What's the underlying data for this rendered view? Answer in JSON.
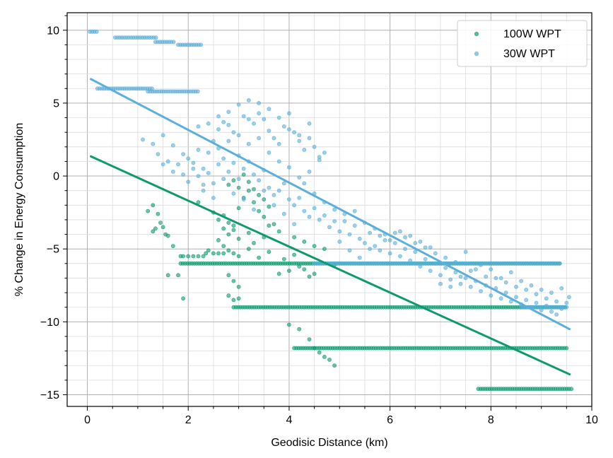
{
  "chart_data": {
    "type": "scatter",
    "xlabel": "Geodisic Distance (km)",
    "ylabel": "% Change in Energy Consumption",
    "xlim": [
      -0.4,
      10
    ],
    "ylim": [
      -15.8,
      11.2
    ],
    "xticks": [
      "0",
      "2",
      "4",
      "6",
      "8",
      "10"
    ],
    "yticks": [
      "10",
      "5",
      "0",
      "−5",
      "−10",
      "−15"
    ],
    "grid": "major and minor",
    "legend_position": "top-right",
    "series": [
      {
        "name": "100W WPT",
        "color": "#0e9a6e",
        "points": [
          [
            1.2,
            -2.4
          ],
          [
            1.3,
            -2.0
          ],
          [
            1.35,
            -3.6
          ],
          [
            1.4,
            -2.6
          ],
          [
            1.45,
            -3.2
          ],
          [
            1.5,
            -3.5
          ],
          [
            1.55,
            -4.0
          ],
          [
            1.6,
            -4.1
          ],
          [
            1.7,
            -4.8
          ],
          [
            1.3,
            -3.8
          ],
          [
            1.6,
            -6.8
          ],
          [
            1.8,
            -6.8
          ],
          [
            1.9,
            -8.4
          ],
          [
            1.85,
            -5.5
          ],
          [
            1.9,
            -5.5
          ],
          [
            2.0,
            -5.5
          ],
          [
            2.1,
            -5.5
          ],
          [
            2.2,
            -5.5
          ],
          [
            2.3,
            -5.5
          ],
          [
            2.35,
            -5.3
          ],
          [
            2.4,
            -5.1
          ],
          [
            2.5,
            -5.3
          ],
          [
            2.6,
            -5.3
          ],
          [
            2.7,
            -5.3
          ],
          [
            2.8,
            -5.1
          ],
          [
            2.9,
            -5.3
          ],
          [
            2.2,
            -1.8
          ],
          [
            2.5,
            -2.5
          ],
          [
            2.6,
            -3.0
          ],
          [
            2.7,
            -2.7
          ],
          [
            2.8,
            -3.2
          ],
          [
            2.9,
            -3.4
          ],
          [
            3.0,
            -2.2
          ],
          [
            3.1,
            -1.5
          ],
          [
            3.2,
            -1.0
          ],
          [
            3.3,
            -1.8
          ],
          [
            3.4,
            -2.4
          ],
          [
            3.5,
            -2.8
          ],
          [
            3.6,
            -3.4
          ],
          [
            2.8,
            -0.6
          ],
          [
            2.9,
            -0.3
          ],
          [
            3.0,
            -0.8
          ],
          [
            3.1,
            0.1
          ],
          [
            3.2,
            -0.4
          ],
          [
            3.3,
            -0.9
          ],
          [
            3.4,
            -1.3
          ],
          [
            3.5,
            -1.6
          ],
          [
            3.6,
            -2.1
          ],
          [
            2.7,
            -3.6
          ],
          [
            2.8,
            -4.0
          ],
          [
            2.9,
            -3.7
          ],
          [
            3.0,
            -4.3
          ],
          [
            3.2,
            -3.9
          ],
          [
            3.3,
            -4.6
          ],
          [
            3.5,
            -4.2
          ],
          [
            3.7,
            -3.3
          ],
          [
            3.8,
            -3.8
          ],
          [
            2.6,
            -4.4
          ],
          [
            2.7,
            -4.8
          ],
          [
            3.0,
            -5.5
          ],
          [
            3.2,
            -5.0
          ],
          [
            3.4,
            -5.6
          ],
          [
            3.6,
            -5.2
          ],
          [
            3.9,
            -5.7
          ],
          [
            4.1,
            -5.4
          ],
          [
            4.2,
            -6.2
          ],
          [
            4.3,
            -6.4
          ],
          [
            4.5,
            -6.7
          ],
          [
            4.1,
            -4.2
          ],
          [
            4.3,
            -4.5
          ],
          [
            4.5,
            -4.8
          ],
          [
            4.7,
            -5.0
          ],
          [
            4.9,
            -6.1
          ],
          [
            4.0,
            -6.5
          ],
          [
            3.8,
            -6.7
          ],
          [
            4.4,
            -6.9
          ],
          [
            2.8,
            -6.8
          ],
          [
            2.9,
            -7.2
          ],
          [
            3.0,
            -7.6
          ],
          [
            2.8,
            -8.2
          ],
          [
            2.9,
            -8.5
          ],
          [
            3.0,
            -8.4
          ],
          [
            4.0,
            -10.2
          ],
          [
            4.2,
            -10.5
          ],
          [
            4.4,
            -11.2
          ],
          [
            4.5,
            -11.8
          ],
          [
            4.6,
            -12.1
          ],
          [
            4.7,
            -12.4
          ],
          [
            4.8,
            -12.6
          ],
          [
            4.9,
            -13.0
          ]
        ],
        "bands": [
          {
            "y": -6.0,
            "x_from": 1.85,
            "x_to": 9.4
          },
          {
            "y": -9.0,
            "x_from": 2.9,
            "x_to": 9.5
          },
          {
            "y": -11.8,
            "x_from": 4.1,
            "x_to": 9.5
          },
          {
            "y": -14.6,
            "x_from": 7.75,
            "x_to": 9.6
          }
        ],
        "trend": {
          "x": [
            0.07,
            9.56
          ],
          "y": [
            1.35,
            -13.6
          ]
        }
      },
      {
        "name": "30W WPT",
        "color": "#5aafdc",
        "points": [
          [
            1.1,
            2.5
          ],
          [
            1.3,
            2.2
          ],
          [
            1.4,
            1.5
          ],
          [
            1.5,
            2.8
          ],
          [
            1.6,
            1.0
          ],
          [
            1.7,
            2.1
          ],
          [
            1.8,
            0.8
          ],
          [
            1.9,
            1.5
          ],
          [
            2.0,
            1.2
          ],
          [
            2.1,
            0.9
          ],
          [
            2.2,
            1.8
          ],
          [
            2.3,
            0.5
          ],
          [
            2.4,
            1.6
          ],
          [
            2.5,
            2.4
          ],
          [
            2.6,
            3.2
          ],
          [
            2.7,
            3.7
          ],
          [
            2.8,
            4.4
          ],
          [
            2.9,
            3.0
          ],
          [
            3.0,
            4.9
          ],
          [
            3.1,
            4.1
          ],
          [
            3.2,
            5.2
          ],
          [
            3.3,
            3.6
          ],
          [
            3.4,
            4.3
          ],
          [
            3.5,
            3.9
          ],
          [
            3.6,
            3.1
          ],
          [
            3.7,
            2.6
          ],
          [
            3.8,
            2.2
          ],
          [
            3.9,
            3.4
          ],
          [
            4.0,
            4.3
          ],
          [
            4.1,
            3.0
          ],
          [
            4.2,
            2.4
          ],
          [
            4.3,
            1.8
          ],
          [
            4.4,
            3.6
          ],
          [
            4.5,
            2.0
          ],
          [
            4.6,
            1.1
          ],
          [
            4.7,
            1.6
          ],
          [
            2.4,
            0.2
          ],
          [
            2.5,
            -0.5
          ],
          [
            2.6,
            0.8
          ],
          [
            2.7,
            1.2
          ],
          [
            2.8,
            0.3
          ],
          [
            2.9,
            0.9
          ],
          [
            3.0,
            -0.2
          ],
          [
            3.1,
            0.5
          ],
          [
            3.2,
            1.0
          ],
          [
            3.3,
            0.1
          ],
          [
            3.4,
            -0.3
          ],
          [
            3.5,
            0.4
          ],
          [
            3.6,
            -0.8
          ],
          [
            3.7,
            -1.3
          ],
          [
            3.8,
            -1.0
          ],
          [
            3.9,
            -0.5
          ],
          [
            4.0,
            -1.6
          ],
          [
            4.1,
            -2.0
          ],
          [
            4.2,
            -1.5
          ],
          [
            4.3,
            -2.4
          ],
          [
            4.4,
            -2.8
          ],
          [
            4.5,
            -2.2
          ],
          [
            4.6,
            -3.0
          ],
          [
            4.7,
            -2.7
          ],
          [
            4.8,
            -3.5
          ],
          [
            4.9,
            -3.1
          ],
          [
            5.0,
            -3.8
          ],
          [
            5.1,
            -2.6
          ],
          [
            5.2,
            -4.0
          ],
          [
            5.3,
            -3.4
          ],
          [
            5.4,
            -4.3
          ],
          [
            5.5,
            -4.6
          ],
          [
            5.6,
            -3.9
          ],
          [
            5.7,
            -4.8
          ],
          [
            5.8,
            -5.1
          ],
          [
            5.9,
            -4.4
          ],
          [
            6.0,
            -5.3
          ],
          [
            6.1,
            -4.6
          ],
          [
            6.2,
            -5.5
          ],
          [
            6.3,
            -5.0
          ],
          [
            6.4,
            -5.8
          ],
          [
            6.5,
            -5.2
          ],
          [
            6.6,
            -6.2
          ],
          [
            6.7,
            -5.7
          ],
          [
            6.8,
            -6.5
          ],
          [
            6.9,
            -6.0
          ],
          [
            7.0,
            -6.8
          ],
          [
            7.1,
            -6.3
          ],
          [
            7.2,
            -7.1
          ],
          [
            7.3,
            -6.6
          ],
          [
            7.4,
            -7.4
          ],
          [
            7.5,
            -7.0
          ],
          [
            7.6,
            -7.6
          ],
          [
            7.7,
            -7.2
          ],
          [
            7.8,
            -7.9
          ],
          [
            7.9,
            -7.5
          ],
          [
            8.0,
            -8.2
          ],
          [
            8.1,
            -7.7
          ],
          [
            8.2,
            -8.4
          ],
          [
            8.3,
            -8.0
          ],
          [
            8.4,
            -8.6
          ],
          [
            8.5,
            -8.3
          ],
          [
            8.6,
            -8.8
          ],
          [
            8.7,
            -8.5
          ],
          [
            8.8,
            -9.0
          ],
          [
            8.9,
            -8.7
          ],
          [
            9.0,
            -9.2
          ],
          [
            9.1,
            -8.9
          ],
          [
            9.2,
            -9.3
          ],
          [
            9.3,
            -9.5
          ],
          [
            9.4,
            -9.1
          ],
          [
            9.5,
            -8.7
          ],
          [
            9.55,
            -8.3
          ],
          [
            2.3,
            -1.0
          ],
          [
            2.5,
            -1.5
          ],
          [
            2.7,
            -0.2
          ],
          [
            2.9,
            -1.2
          ],
          [
            3.1,
            -1.6
          ],
          [
            3.3,
            -2.3
          ],
          [
            3.5,
            -1.0
          ],
          [
            3.7,
            -2.0
          ],
          [
            3.9,
            -2.6
          ],
          [
            4.1,
            -3.3
          ],
          [
            4.3,
            -0.5
          ],
          [
            4.5,
            -1.2
          ],
          [
            4.7,
            -1.8
          ],
          [
            4.9,
            -2.3
          ],
          [
            5.1,
            -3.1
          ],
          [
            5.3,
            -2.4
          ],
          [
            5.5,
            -3.2
          ],
          [
            5.7,
            -3.6
          ],
          [
            5.9,
            -4.0
          ],
          [
            6.1,
            -3.9
          ],
          [
            6.3,
            -4.2
          ],
          [
            6.5,
            -4.6
          ],
          [
            6.7,
            -4.9
          ],
          [
            6.9,
            -5.3
          ],
          [
            7.1,
            -5.6
          ],
          [
            7.3,
            -5.9
          ],
          [
            7.5,
            -5.2
          ],
          [
            7.7,
            -6.4
          ],
          [
            7.9,
            -6.9
          ],
          [
            8.1,
            -7.0
          ],
          [
            8.3,
            -7.3
          ],
          [
            8.5,
            -7.6
          ],
          [
            8.7,
            -7.8
          ],
          [
            8.9,
            -8.1
          ],
          [
            9.1,
            -8.4
          ],
          [
            9.3,
            -8.6
          ],
          [
            2.2,
            3.4
          ],
          [
            2.4,
            3.6
          ],
          [
            2.6,
            4.1
          ],
          [
            2.8,
            3.5
          ],
          [
            3.0,
            2.8
          ],
          [
            3.2,
            2.2
          ],
          [
            3.4,
            2.6
          ],
          [
            3.6,
            1.6
          ],
          [
            3.8,
            1.0
          ],
          [
            4.0,
            0.6
          ],
          [
            4.2,
            -0.1
          ],
          [
            4.4,
            0.3
          ],
          [
            5.0,
            -4.5
          ],
          [
            5.2,
            -5.1
          ],
          [
            5.4,
            -5.6
          ],
          [
            5.6,
            -5.0
          ],
          [
            5.8,
            -4.1
          ],
          [
            6.0,
            -4.4
          ],
          [
            6.2,
            -3.8
          ],
          [
            6.4,
            -4.1
          ],
          [
            6.6,
            -4.5
          ],
          [
            6.8,
            -4.9
          ],
          [
            7.0,
            -7.4
          ],
          [
            7.2,
            -7.6
          ],
          [
            7.4,
            -6.9
          ],
          [
            7.6,
            -6.5
          ],
          [
            7.8,
            -6.1
          ],
          [
            8.0,
            -6.4
          ],
          [
            8.2,
            -7.0
          ],
          [
            8.4,
            -6.6
          ],
          [
            8.6,
            -7.2
          ],
          [
            8.8,
            -7.5
          ],
          [
            9.0,
            -7.8
          ],
          [
            9.2,
            -8.0
          ],
          [
            9.4,
            -7.7
          ],
          [
            1.5,
            0.8
          ],
          [
            1.7,
            0.3
          ],
          [
            1.9,
            0.1
          ],
          [
            2.0,
            -0.4
          ],
          [
            2.1,
            0.5
          ],
          [
            2.2,
            0.0
          ],
          [
            2.3,
            -0.6
          ],
          [
            2.6,
            1.9
          ],
          [
            2.8,
            2.4
          ],
          [
            3.0,
            1.4
          ],
          [
            3.2,
            3.9
          ],
          [
            3.4,
            5.0
          ],
          [
            3.6,
            4.6
          ],
          [
            3.8,
            4.0
          ],
          [
            4.0,
            3.2
          ],
          [
            4.2,
            2.8
          ],
          [
            4.4,
            2.6
          ],
          [
            4.6,
            1.3
          ]
        ],
        "bands": [
          {
            "y": 9.9,
            "x_from": 0.05,
            "x_to": 0.2
          },
          {
            "y": 9.5,
            "x_from": 0.55,
            "x_to": 1.4
          },
          {
            "y": 9.2,
            "x_from": 1.35,
            "x_to": 1.75
          },
          {
            "y": 9.0,
            "x_from": 1.8,
            "x_to": 2.25
          },
          {
            "y": 6.0,
            "x_from": 0.2,
            "x_to": 1.3
          },
          {
            "y": 5.8,
            "x_from": 1.2,
            "x_to": 2.2
          },
          {
            "y": -6.0,
            "x_from": 4.5,
            "x_to": 9.4
          },
          {
            "y": -9.0,
            "x_from": 8.6,
            "x_to": 9.5
          }
        ],
        "trend": {
          "x": [
            0.07,
            9.56
          ],
          "y": [
            6.65,
            -10.5
          ]
        }
      }
    ]
  }
}
